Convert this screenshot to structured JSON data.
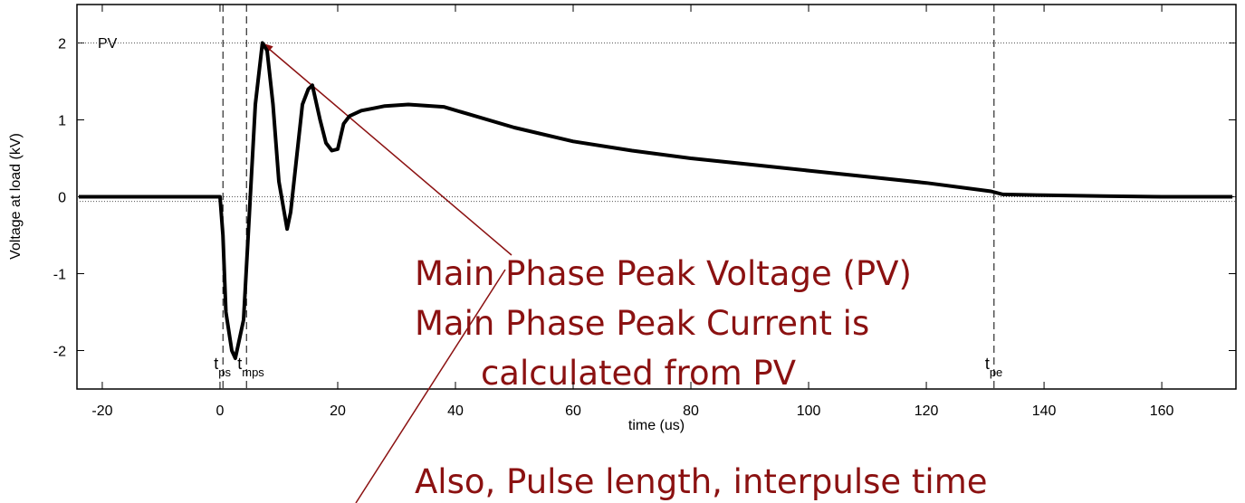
{
  "chart_data": {
    "type": "line",
    "xlabel": "time (us)",
    "ylabel": "Voltage at load (kV)",
    "x": [
      -24,
      -10,
      0,
      0.5,
      1,
      2,
      2.6,
      4,
      5,
      6,
      7.2,
      8,
      9,
      10,
      11.4,
      12,
      13,
      14,
      15,
      15.7,
      17,
      18,
      19,
      20,
      21,
      22,
      24,
      26,
      28,
      32,
      38,
      42,
      50,
      60,
      70,
      80,
      90,
      100,
      110,
      120,
      131,
      133,
      140,
      150,
      160,
      172
    ],
    "values": [
      0,
      0,
      0,
      -0.5,
      -1.5,
      -2.0,
      -2.1,
      -1.6,
      -0.2,
      1.2,
      2.0,
      1.9,
      1.2,
      0.2,
      -0.42,
      -0.2,
      0.5,
      1.2,
      1.4,
      1.45,
      1.0,
      0.7,
      0.6,
      0.62,
      0.95,
      1.05,
      1.12,
      1.15,
      1.18,
      1.2,
      1.17,
      1.08,
      0.9,
      0.72,
      0.6,
      0.5,
      0.42,
      0.34,
      0.26,
      0.18,
      0.07,
      0.03,
      0.02,
      0.01,
      0,
      0
    ],
    "color": "#000000",
    "xlim": [
      -24.3,
      172.6
    ],
    "ylim": [
      -2.5,
      2.5
    ],
    "xticks": [
      -20,
      0,
      20,
      40,
      60,
      80,
      100,
      120,
      140,
      160
    ],
    "yticks": [
      -2,
      -1,
      0,
      1,
      2
    ],
    "hlines": [
      2,
      0,
      -0.06
    ],
    "pv_label": "PV",
    "markers": [
      {
        "x": 0.5,
        "label": "t",
        "sub": "ps"
      },
      {
        "x": 4.5,
        "label": "t",
        "sub": "mps"
      },
      {
        "x": 131.5,
        "label": "t",
        "sub": "pe"
      }
    ],
    "annotations": [
      "Main Phase Peak Voltage (PV)",
      "Main Phase Peak Current is",
      "calculated from PV",
      "Also, Pulse length, interpulse time"
    ]
  }
}
